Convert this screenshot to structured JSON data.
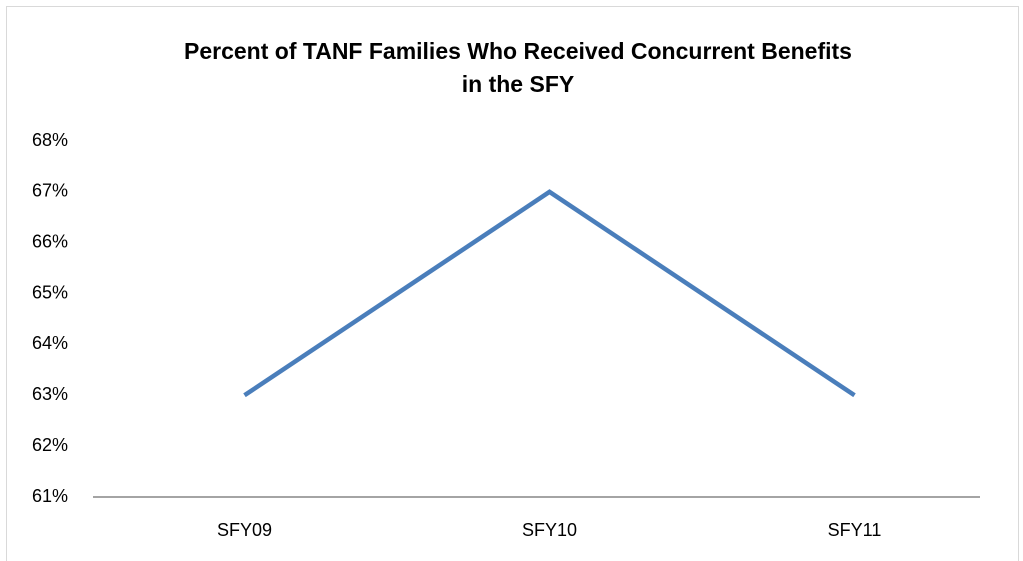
{
  "chart_data": {
    "type": "line",
    "title": [
      "Percent of TANF Families Who Received Concurrent Benefits",
      "in the SFY"
    ],
    "categories": [
      "SFY09",
      "SFY10",
      "SFY11"
    ],
    "values": [
      63,
      67,
      63
    ],
    "color": "#4a7ebb",
    "ylim": [
      61,
      68
    ],
    "yticks": [
      {
        "value": 61,
        "label": "61%"
      },
      {
        "value": 62,
        "label": "62%"
      },
      {
        "value": 63,
        "label": "63%"
      },
      {
        "value": 64,
        "label": "64%"
      },
      {
        "value": 65,
        "label": "65%"
      },
      {
        "value": 66,
        "label": "66%"
      },
      {
        "value": 67,
        "label": "67%"
      },
      {
        "value": 68,
        "label": "68%"
      }
    ],
    "grid": false
  }
}
